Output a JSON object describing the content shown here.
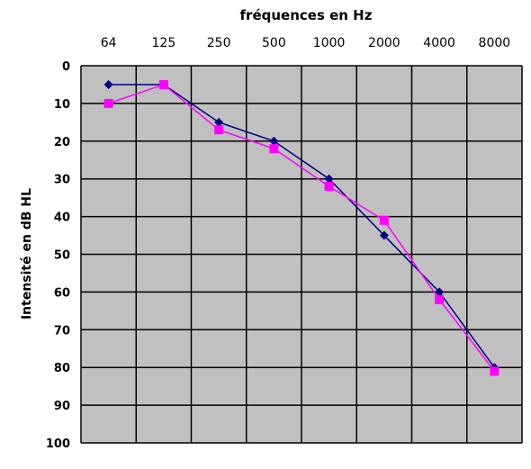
{
  "chart_data": {
    "type": "line",
    "title": "fréquences en Hz",
    "ylabel": "Intensité en dB HL",
    "xlabel": "",
    "categories": [
      "64",
      "125",
      "250",
      "500",
      "1000",
      "2000",
      "4000",
      "8000"
    ],
    "yticks": [
      "0",
      "10",
      "20",
      "30",
      "40",
      "50",
      "60",
      "70",
      "80",
      "90",
      "100"
    ],
    "ylim": [
      0,
      100
    ],
    "y_inverted": true,
    "grid": true,
    "series": [
      {
        "color": "#000080",
        "marker": "diamond",
        "values": [
          5,
          5,
          15,
          20,
          30,
          45,
          60,
          80
        ]
      },
      {
        "color": "#ff00ff",
        "marker": "square",
        "values": [
          10,
          5,
          17,
          22,
          32,
          41,
          62,
          81
        ]
      }
    ],
    "colors": {
      "plot_background": "#c0c0c0",
      "grid": "#000000"
    }
  }
}
